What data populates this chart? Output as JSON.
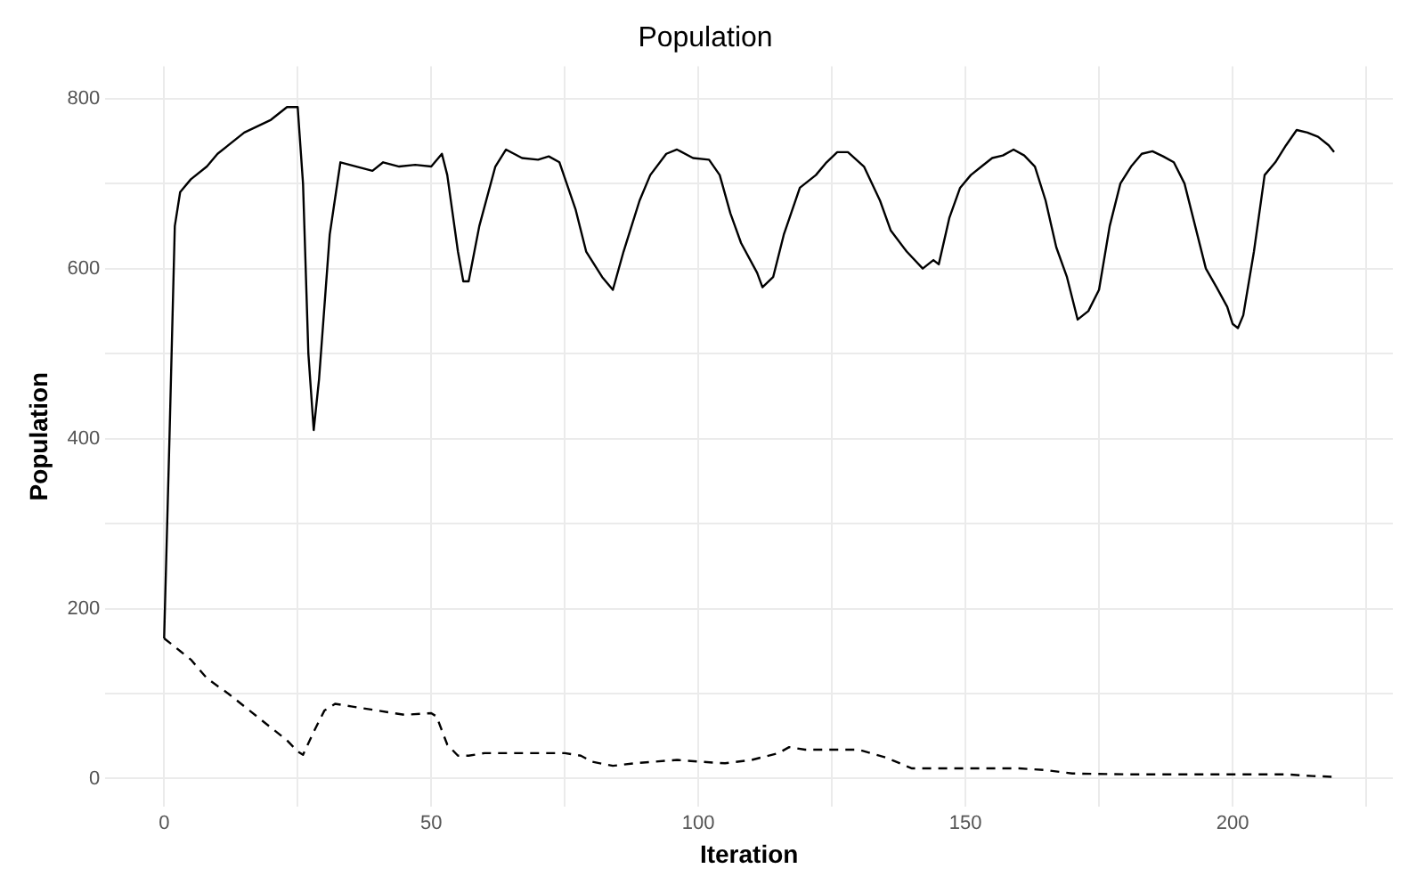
{
  "chart_data": {
    "type": "line",
    "title": "Population",
    "xlabel": "Iteration",
    "ylabel": "Population",
    "xlim": [
      -11,
      230
    ],
    "ylim": [
      -33,
      838
    ],
    "xticks": [
      0,
      {
        "value": 25,
        "label": null
      },
      50,
      {
        "value": 75,
        "label": null
      },
      100,
      {
        "value": 125,
        "label": null
      },
      150,
      {
        "value": 175,
        "label": null
      },
      200,
      {
        "value": 225,
        "label": null
      }
    ],
    "yticks": [
      0,
      {
        "value": 100,
        "label": null
      },
      200,
      {
        "value": 300,
        "label": null
      },
      400,
      {
        "value": 500,
        "label": null
      },
      600,
      {
        "value": 700,
        "label": null
      },
      800
    ],
    "grid": true,
    "legend": false,
    "marker": "none",
    "series": [
      {
        "color": "#000000",
        "line_style": "solid",
        "x": [
          0,
          1,
          2,
          3,
          5,
          8,
          10,
          15,
          20,
          23,
          25,
          26,
          27,
          28,
          29,
          31,
          33,
          36,
          39,
          41,
          44,
          47,
          50,
          52,
          53,
          55,
          56,
          57,
          59,
          62,
          64,
          67,
          70,
          72,
          74,
          77,
          79,
          82,
          84,
          86,
          89,
          91,
          94,
          96,
          99,
          102,
          104,
          106,
          108,
          111,
          112,
          114,
          116,
          119,
          122,
          124,
          126,
          128,
          131,
          134,
          136,
          139,
          142,
          144,
          145,
          147,
          149,
          151,
          153,
          155,
          157,
          159,
          161,
          163,
          165,
          167,
          169,
          171,
          173,
          175,
          177,
          179,
          181,
          183,
          185,
          187,
          189,
          191,
          193,
          195,
          197,
          199,
          200,
          201,
          202,
          204,
          206,
          208,
          210,
          212,
          214,
          216,
          218,
          219
        ],
        "values": [
          165,
          400,
          650,
          690,
          705,
          720,
          735,
          760,
          775,
          790,
          790,
          700,
          500,
          410,
          470,
          640,
          725,
          720,
          715,
          725,
          720,
          722,
          720,
          735,
          710,
          620,
          585,
          585,
          650,
          720,
          740,
          730,
          728,
          732,
          725,
          670,
          620,
          590,
          575,
          620,
          680,
          710,
          735,
          740,
          730,
          728,
          710,
          665,
          630,
          595,
          578,
          590,
          640,
          695,
          710,
          725,
          737,
          737,
          720,
          680,
          645,
          620,
          600,
          610,
          605,
          660,
          695,
          710,
          720,
          730,
          733,
          740,
          733,
          720,
          680,
          625,
          590,
          540,
          550,
          575,
          650,
          700,
          720,
          735,
          738,
          732,
          725,
          700,
          650,
          600,
          578,
          555,
          535,
          530,
          545,
          620,
          710,
          725,
          745,
          763,
          760,
          755,
          745,
          737
        ]
      },
      {
        "color": "#000000",
        "line_style": "dashed",
        "x": [
          0,
          3,
          5,
          8,
          12,
          16,
          20,
          23,
          25,
          26,
          28,
          30,
          32,
          35,
          40,
          45,
          50,
          51,
          53,
          55,
          57,
          60,
          70,
          75,
          78,
          80,
          84,
          88,
          92,
          96,
          100,
          105,
          110,
          115,
          117,
          120,
          130,
          135,
          140,
          145,
          150,
          160,
          165,
          170,
          180,
          190,
          200,
          210,
          215,
          219
        ],
        "values": [
          165,
          150,
          140,
          118,
          100,
          80,
          60,
          45,
          32,
          28,
          55,
          80,
          88,
          85,
          80,
          75,
          77,
          73,
          40,
          27,
          27,
          30,
          30,
          30,
          27,
          20,
          15,
          18,
          20,
          22,
          20,
          18,
          22,
          30,
          37,
          34,
          34,
          25,
          12,
          12,
          12,
          12,
          10,
          6,
          5,
          5,
          5,
          5,
          3,
          2
        ]
      }
    ]
  }
}
